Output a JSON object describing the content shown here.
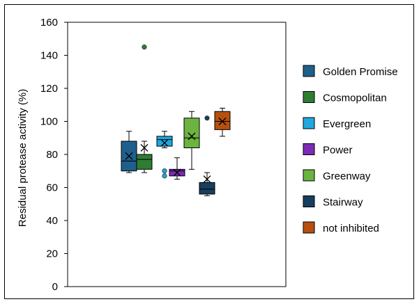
{
  "chart_data": {
    "type": "box",
    "ylabel": "Residual protease activity (%)",
    "ylim": [
      0,
      160
    ],
    "yticks": [
      0,
      20,
      40,
      60,
      80,
      100,
      120,
      140,
      160
    ],
    "grid": false,
    "legend_position": "right",
    "series": [
      {
        "name": "Golden Promise",
        "color": "#1f5f8b",
        "min": 69,
        "q1": 70,
        "median": 76,
        "q3": 88,
        "max": 94,
        "mean": 79,
        "outliers": []
      },
      {
        "name": "Cosmopolitan",
        "color": "#2e7d32",
        "min": 69,
        "q1": 71,
        "median": 77,
        "q3": 80,
        "max": 88,
        "mean": 84,
        "outliers": [
          145
        ]
      },
      {
        "name": "Evergreen",
        "color": "#1fa8e0",
        "min": 84,
        "q1": 85,
        "median": 89,
        "q3": 91,
        "max": 94,
        "mean": 87,
        "outliers": [
          70,
          67
        ]
      },
      {
        "name": "Power",
        "color": "#7d2bb5",
        "min": 65,
        "q1": 67,
        "median": 70,
        "q3": 71,
        "max": 78,
        "mean": 69,
        "outliers": []
      },
      {
        "name": "Greenway",
        "color": "#6cb33f",
        "min": 71,
        "q1": 84,
        "median": 90,
        "q3": 102,
        "max": 106,
        "mean": 91,
        "outliers": []
      },
      {
        "name": "Stairway",
        "color": "#173f5f",
        "min": 55,
        "q1": 56,
        "median": 59,
        "q3": 63,
        "max": 69,
        "mean": 65,
        "outliers": [
          102
        ]
      },
      {
        "name": "not inhibited",
        "color": "#b5500f",
        "min": 91,
        "q1": 95,
        "median": 100,
        "q3": 106,
        "max": 108,
        "mean": 100,
        "outliers": []
      }
    ]
  }
}
